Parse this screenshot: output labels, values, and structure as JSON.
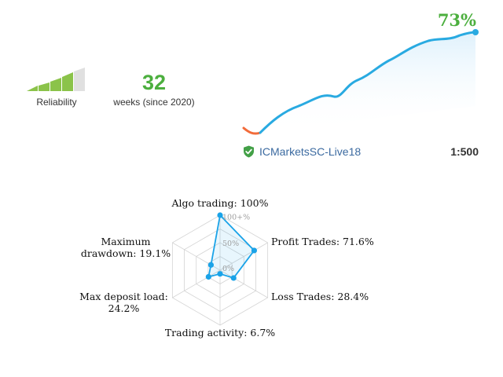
{
  "reliability": {
    "label": "Reliability",
    "level": 4,
    "max_level": 5,
    "bar_color": "#8bc34a",
    "empty_color": "#e0e0e0"
  },
  "weeks": {
    "value": "32",
    "label": "weeks (since 2020)"
  },
  "growth": {
    "value": "73%",
    "line_color": "#29aae1",
    "negative_color": "#f26b3a",
    "fill_color": "#e9f6fd"
  },
  "account": {
    "name": "ICMarketsSC-Live18",
    "leverage": "1:500",
    "icon": "shield-check-icon"
  },
  "chart_data": {
    "type": "radar",
    "axes": [
      {
        "label": "Algo trading: 100%",
        "value": 100
      },
      {
        "label": "Profit Trades: 71.6%",
        "value": 71.6
      },
      {
        "label": "Loss Trades: 28.4%",
        "value": 28.4
      },
      {
        "label": "Trading activity: 6.7%",
        "value": 6.7
      },
      {
        "label": "Max deposit load: 24.2%",
        "value": 24.2
      },
      {
        "label": "Maximum drawdown: 19.1%",
        "value": 19.1
      }
    ],
    "tick_labels": [
      "0%",
      "50%",
      "100+%"
    ],
    "range": [
      0,
      100
    ],
    "series_color": "#1aa3e8"
  }
}
